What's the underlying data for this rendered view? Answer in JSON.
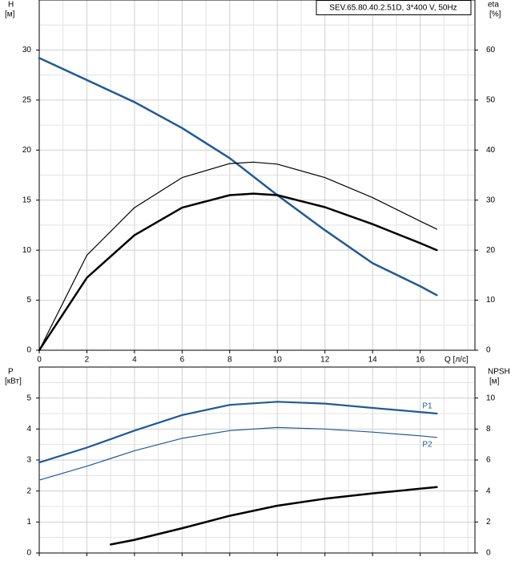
{
  "chart_data": [
    {
      "type": "line",
      "legend_box": "SEV.65.80.40.2.51D, 3*400 V, 50Hz",
      "y_label": "H",
      "y_unit": "[м]",
      "y2_label": "eta",
      "y2_unit": "[%]",
      "x_label": "Q [л/с]",
      "xlim": [
        0,
        18.3
      ],
      "xticks": [
        0,
        2,
        4,
        6,
        8,
        10,
        12,
        14,
        16
      ],
      "x_minor_ticks": [
        1,
        3,
        5,
        7,
        9,
        11,
        13,
        15,
        17,
        18
      ],
      "ylim": [
        0,
        35
      ],
      "yticks": [
        0,
        5,
        10,
        15,
        20,
        25,
        30
      ],
      "y_minor_ticks": [
        2.5,
        7.5,
        12.5,
        17.5,
        22.5,
        27.5,
        32.5
      ],
      "y2lim": [
        0,
        70
      ],
      "y2ticks": [
        0,
        10,
        20,
        30,
        40,
        50,
        60
      ],
      "grid": true,
      "x_tick_labels": true,
      "series": [
        {
          "color": "#1f5a96",
          "line_width": 2.5,
          "x": [
            0,
            2,
            4,
            6,
            8,
            10,
            12,
            14,
            16,
            16.7
          ],
          "values": [
            29.2,
            27,
            24.8,
            22.2,
            19.2,
            15.5,
            12,
            8.7,
            6.4,
            5.5
          ]
        },
        {
          "color": "#000000",
          "line_width": 1.2,
          "axis": "y2",
          "x": [
            0,
            2,
            4,
            6,
            8,
            9,
            10,
            12,
            14,
            16,
            16.7
          ],
          "values": [
            0,
            19,
            28.5,
            34.5,
            37.3,
            37.6,
            37.2,
            34.5,
            30.5,
            25.8,
            24.2
          ]
        },
        {
          "color": "#000000",
          "line_width": 2.5,
          "axis": "y2",
          "x": [
            0,
            2,
            4,
            6,
            8,
            9,
            10,
            12,
            14,
            16,
            16.7
          ],
          "values": [
            0,
            14.5,
            23,
            28.5,
            31,
            31.3,
            31,
            28.6,
            25.2,
            21.4,
            20
          ]
        }
      ]
    },
    {
      "type": "line",
      "y_label": "P",
      "y_unit": "[кВт]",
      "y2_label": "NPSH",
      "y2_unit": "[м]",
      "xlim": [
        0,
        18.3
      ],
      "xticks": [
        0,
        2,
        4,
        6,
        8,
        10,
        12,
        14,
        16
      ],
      "x_minor_ticks": [
        1,
        3,
        5,
        7,
        9,
        11,
        13,
        15,
        17,
        18
      ],
      "ylim": [
        0,
        6
      ],
      "yticks": [
        0,
        1,
        2,
        3,
        4,
        5
      ],
      "y_minor_ticks": [
        0.5,
        1.5,
        2.5,
        3.5,
        4.5,
        5.5
      ],
      "y2lim": [
        0,
        12
      ],
      "y2ticks": [
        0,
        2,
        4,
        6,
        8,
        10
      ],
      "grid": true,
      "x_tick_labels": false,
      "series": [
        {
          "name": "P1",
          "color": "#1f5a96",
          "line_width": 2.2,
          "x": [
            0,
            2,
            4,
            6,
            8,
            10,
            12,
            14,
            16,
            16.7
          ],
          "values": [
            2.92,
            3.4,
            3.95,
            4.45,
            4.78,
            4.88,
            4.82,
            4.68,
            4.55,
            4.5
          ]
        },
        {
          "name": "P2",
          "color": "#1f5a96",
          "line_width": 1.2,
          "x": [
            0,
            2,
            4,
            6,
            8,
            10,
            12,
            14,
            16,
            16.7
          ],
          "values": [
            2.35,
            2.8,
            3.3,
            3.7,
            3.95,
            4.05,
            4.0,
            3.9,
            3.78,
            3.73
          ]
        },
        {
          "color": "#000000",
          "line_width": 2.5,
          "axis": "y2",
          "x": [
            3,
            4,
            6,
            8,
            10,
            12,
            14,
            16,
            16.7
          ],
          "values": [
            0.55,
            0.85,
            1.6,
            2.4,
            3.05,
            3.5,
            3.85,
            4.15,
            4.25
          ]
        }
      ]
    }
  ]
}
